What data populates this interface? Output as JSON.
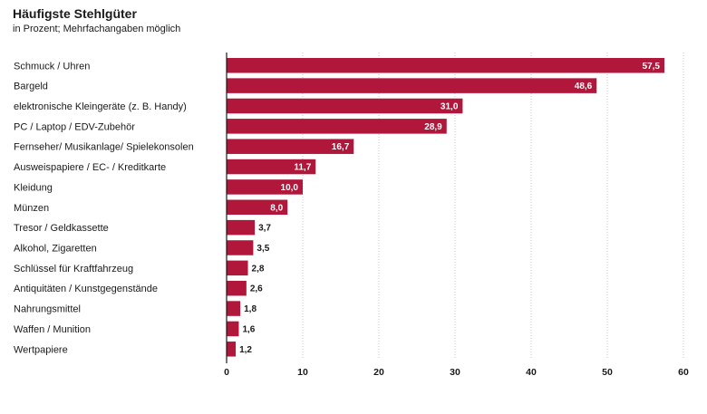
{
  "chart_data": {
    "type": "bar",
    "orientation": "horizontal",
    "title": "Häufigste Stehlgüter",
    "subtitle": "in Prozent; Mehrfachangaben möglich",
    "categories": [
      "Schmuck / Uhren",
      "Bargeld",
      "elektronische Kleingeräte (z. B. Handy)",
      "PC / Laptop / EDV-Zubehör",
      "Fernseher/ Musikanlage/ Spielekonsolen",
      "Ausweispapiere / EC- / Kreditkarte",
      "Kleidung",
      "Münzen",
      "Tresor / Geldkassette",
      "Alkohol, Zigaretten",
      "Schlüssel für Kraftfahrzeug",
      "Antiquitäten / Kunstgegenstände",
      "Nahrungsmittel",
      "Waffen / Munition",
      "Wertpapiere"
    ],
    "values": [
      57.5,
      48.6,
      31.0,
      28.9,
      16.7,
      11.7,
      10.0,
      8.0,
      3.7,
      3.5,
      2.8,
      2.6,
      1.8,
      1.6,
      1.2
    ],
    "value_labels": [
      "57,5",
      "48,6",
      "31,0",
      "28,9",
      "16,7",
      "11,7",
      "10,0",
      "8,0",
      "3,7",
      "3,5",
      "2,8",
      "2,6",
      "1,8",
      "1,6",
      "1,2"
    ],
    "xlim": [
      0,
      60
    ],
    "xticks": [
      0,
      10,
      20,
      30,
      40,
      50,
      60
    ],
    "grid": true,
    "bar_color": "#b0173a"
  }
}
